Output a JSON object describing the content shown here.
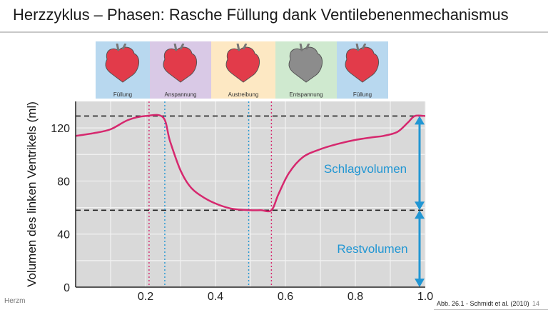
{
  "slide": {
    "title": "Herzzyklus – Phasen:  Rasche Füllung dank Ventilebenenmechanismus",
    "footer_left": "Herzm",
    "source": "Abb. 26.1 -  Schmidt et al. (2010)",
    "page_number": "14"
  },
  "phases": [
    {
      "label": "Füllung",
      "color": "#b8d8ef",
      "heart_color": "#e23b4a"
    },
    {
      "label": "Anspannung",
      "color": "#d9c9e6",
      "heart_color": "#e23b4a"
    },
    {
      "label": "Austreibung",
      "color": "#fde8c3",
      "heart_color": "#e23b4a"
    },
    {
      "label": "Entspannung",
      "color": "#cfe9cf",
      "heart_color": "#8c8c8c"
    },
    {
      "label": "Füllung",
      "color": "#b8d8ef",
      "heart_color": "#e23b4a"
    }
  ],
  "chart_data": {
    "type": "line",
    "ylabel": "Volumen des linken Ventrikels (ml)",
    "xlim": [
      0,
      1.0
    ],
    "ylim": [
      0,
      140
    ],
    "x_ticks": [
      "0.2",
      "0.4",
      "0.6",
      "0.8",
      "1.0"
    ],
    "y_ticks": [
      "0",
      "40",
      "80",
      "120"
    ],
    "grid": true,
    "series": [
      {
        "color": "#d6286e",
        "points": [
          [
            0,
            114
          ],
          [
            0.05,
            116
          ],
          [
            0.1,
            119
          ],
          [
            0.15,
            126
          ],
          [
            0.2,
            129
          ],
          [
            0.25,
            128
          ],
          [
            0.27,
            110
          ],
          [
            0.3,
            88
          ],
          [
            0.33,
            75
          ],
          [
            0.37,
            67
          ],
          [
            0.41,
            62
          ],
          [
            0.45,
            59
          ],
          [
            0.5,
            58
          ],
          [
            0.53,
            58
          ],
          [
            0.56,
            58
          ],
          [
            0.58,
            70
          ],
          [
            0.61,
            86
          ],
          [
            0.65,
            98
          ],
          [
            0.7,
            104
          ],
          [
            0.75,
            108
          ],
          [
            0.8,
            111
          ],
          [
            0.85,
            113
          ],
          [
            0.88,
            114
          ],
          [
            0.92,
            117
          ],
          [
            0.95,
            124
          ],
          [
            0.97,
            129
          ],
          [
            1.0,
            129
          ]
        ]
      }
    ],
    "hlines": [
      {
        "y": 129,
        "style": "dashed",
        "color": "#222"
      },
      {
        "y": 58,
        "style": "dashed",
        "color": "#222"
      }
    ],
    "vlines": [
      {
        "x": 0.21,
        "color": "#d6286e"
      },
      {
        "x": 0.255,
        "color": "#2196d3"
      },
      {
        "x": 0.495,
        "color": "#2196d3"
      },
      {
        "x": 0.56,
        "color": "#d6286e"
      }
    ],
    "annotations": [
      {
        "text": "Schlagvolumen",
        "y_from": 129,
        "y_to": 58,
        "color": "#2196d3"
      },
      {
        "text": "Restvolumen",
        "y_from": 58,
        "y_to": 0,
        "color": "#2196d3"
      }
    ]
  }
}
